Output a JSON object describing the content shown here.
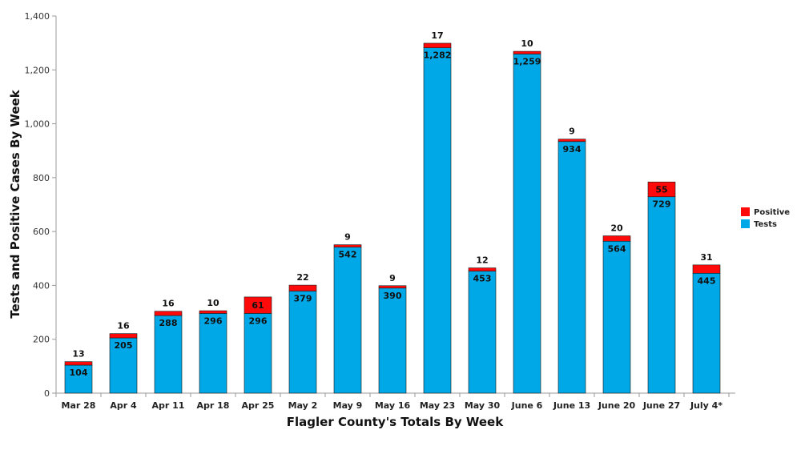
{
  "chart_data": {
    "type": "bar",
    "stacked": true,
    "xlabel": "Flagler County's Totals By Week",
    "ylabel": "Tests and Positive Cases By Week",
    "ylim": [
      0,
      1400
    ],
    "yticks": [
      0,
      200,
      400,
      600,
      800,
      1000,
      1200,
      1400
    ],
    "ytick_labels": [
      "0",
      "200",
      "400",
      "600",
      "800",
      "1,000",
      "1,200",
      "1,400"
    ],
    "categories": [
      "Mar 28",
      "Apr 4",
      "Apr 11",
      "Apr 18",
      "Apr 25",
      "May 2",
      "May 9",
      "May 16",
      "May 23",
      "May 30",
      "June 6",
      "June 13",
      "June 20",
      "June 27",
      "July 4*"
    ],
    "series": [
      {
        "name": "Tests",
        "color": "#00a8e8",
        "values": [
          104,
          205,
          288,
          296,
          296,
          379,
          542,
          390,
          1282,
          453,
          1259,
          934,
          564,
          729,
          445
        ],
        "labels": [
          "104",
          "205",
          "288",
          "296",
          "296",
          "379",
          "542",
          "390",
          "1,282",
          "453",
          "1,259",
          "934",
          "564",
          "729",
          "445"
        ]
      },
      {
        "name": "Positive",
        "color": "#ff0a0a",
        "values": [
          13,
          16,
          16,
          10,
          61,
          22,
          9,
          9,
          17,
          12,
          10,
          9,
          20,
          55,
          31
        ],
        "labels": [
          "13",
          "16",
          "16",
          "10",
          "61",
          "22",
          "9",
          "9",
          "17",
          "12",
          "10",
          "9",
          "20",
          "55",
          "31"
        ]
      }
    ],
    "grid": false,
    "legend_position": "right"
  }
}
